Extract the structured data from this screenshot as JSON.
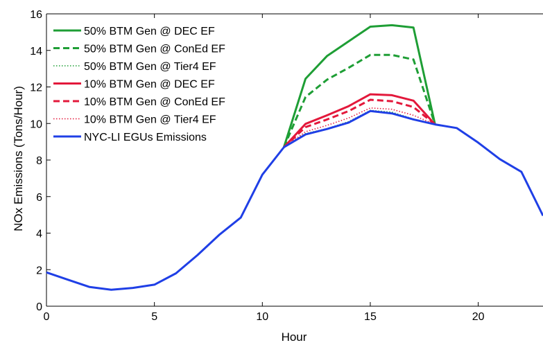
{
  "chart_data": {
    "type": "line",
    "xlabel": "Hour",
    "ylabel": "NOx Emissions (Tons/Hour)",
    "xlim": [
      0,
      23
    ],
    "ylim": [
      0,
      16
    ],
    "xticks": [
      0,
      5,
      10,
      15,
      20
    ],
    "yticks": [
      0,
      2,
      4,
      6,
      8,
      10,
      12,
      14,
      16
    ],
    "grid": false,
    "legend_position": "top-left",
    "series": [
      {
        "name": "50% BTM Gen @ DEC EF",
        "color": "#1e9e35",
        "style": "solid",
        "x": [
          11,
          12,
          13,
          14,
          15,
          16,
          17,
          18
        ],
        "y": [
          8.7,
          12.45,
          13.7,
          14.5,
          15.3,
          15.38,
          15.25,
          9.95
        ]
      },
      {
        "name": "50% BTM Gen @ ConEd EF",
        "color": "#1e9e35",
        "style": "dashed",
        "x": [
          11,
          12,
          13,
          14,
          15,
          16,
          17,
          18
        ],
        "y": [
          8.7,
          11.45,
          12.4,
          13.05,
          13.75,
          13.75,
          13.5,
          9.95
        ]
      },
      {
        "name": "50% BTM Gen @ Tier4 EF",
        "color": "#1e9e35",
        "style": "dotted",
        "x": [
          11,
          12,
          13,
          14,
          15,
          16,
          17,
          18
        ],
        "y": [
          8.7,
          9.45,
          9.72,
          10.1,
          10.72,
          10.62,
          10.25,
          9.95
        ]
      },
      {
        "name": "10% BTM Gen @ DEC EF",
        "color": "#e3183b",
        "style": "solid",
        "x": [
          11,
          12,
          13,
          14,
          15,
          16,
          17,
          18
        ],
        "y": [
          8.7,
          9.98,
          10.45,
          10.95,
          11.6,
          11.55,
          11.25,
          9.95
        ]
      },
      {
        "name": "10% BTM Gen @ ConEd EF",
        "color": "#e3183b",
        "style": "dashed",
        "x": [
          11,
          12,
          13,
          14,
          15,
          16,
          17,
          18
        ],
        "y": [
          8.7,
          9.8,
          10.22,
          10.68,
          11.3,
          11.22,
          10.9,
          9.95
        ]
      },
      {
        "name": "10% BTM Gen @ Tier4 EF",
        "color": "#e3183b",
        "style": "dotted",
        "x": [
          11,
          12,
          13,
          14,
          15,
          16,
          17,
          18
        ],
        "y": [
          8.7,
          9.55,
          9.9,
          10.3,
          10.85,
          10.78,
          10.45,
          9.95
        ]
      },
      {
        "name": "NYC-LI EGUs Emissions",
        "color": "#1f3fe6",
        "style": "solid",
        "x": [
          0,
          1,
          2,
          3,
          4,
          5,
          6,
          7,
          8,
          9,
          10,
          11,
          12,
          13,
          14,
          15,
          16,
          17,
          18,
          19,
          20,
          21,
          22,
          23
        ],
        "y": [
          1.85,
          1.45,
          1.05,
          0.9,
          1.0,
          1.18,
          1.8,
          2.8,
          3.9,
          4.85,
          7.2,
          8.7,
          9.4,
          9.7,
          10.05,
          10.68,
          10.55,
          10.22,
          9.95,
          9.75,
          8.95,
          8.05,
          7.35,
          4.95
        ]
      }
    ]
  }
}
